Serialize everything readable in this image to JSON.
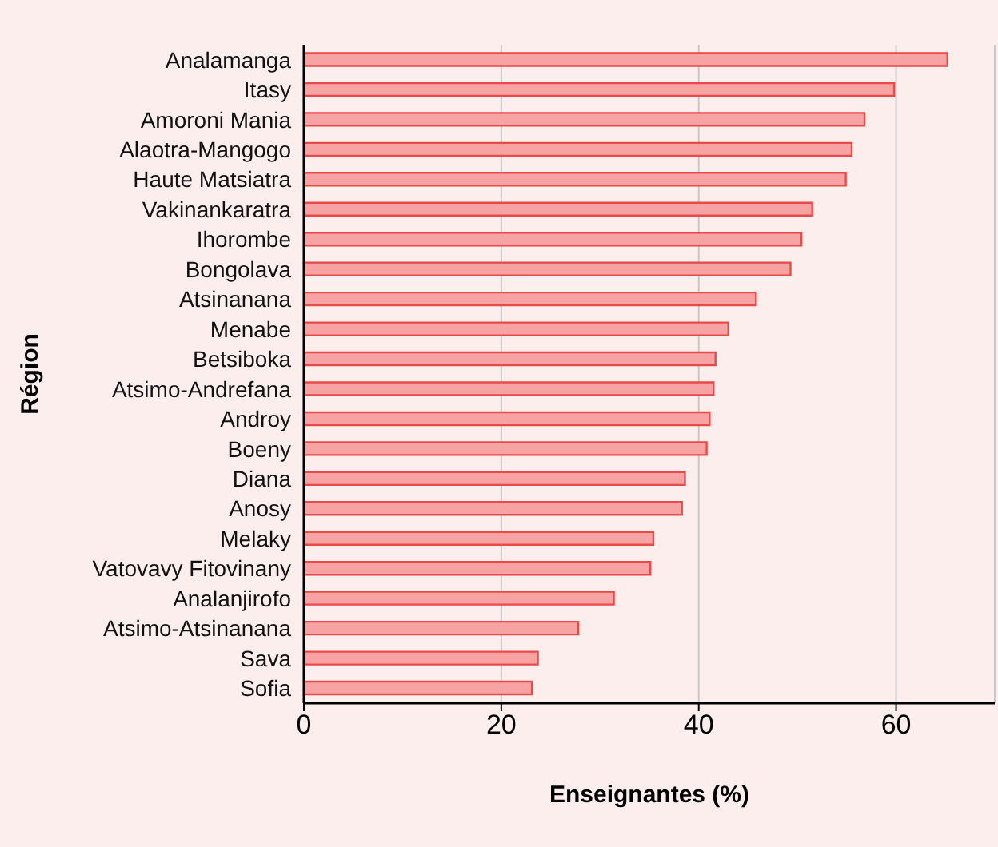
{
  "chart_data": {
    "type": "bar",
    "orientation": "horizontal",
    "xlabel": "Enseignantes (%)",
    "ylabel": "Région",
    "categories": [
      "Analamanga",
      "Itasy",
      "Amoroni Mania",
      "Alaotra-Mangogo",
      "Haute Matsiatra",
      "Vakinankaratra",
      "Ihorombe",
      "Bongolava",
      "Atsinanana",
      "Menabe",
      "Betsiboka",
      "Atsimo-Andrefana",
      "Androy",
      "Boeny",
      "Diana",
      "Anosy",
      "Melaky",
      "Vatovavy Fitovinany",
      "Analanjirofo",
      "Atsimo-Atsinanana",
      "Sava",
      "Sofia"
    ],
    "values": [
      65.2,
      59.8,
      56.8,
      55.5,
      54.9,
      51.5,
      50.4,
      49.3,
      45.8,
      43.0,
      41.7,
      41.5,
      41.1,
      40.8,
      38.6,
      38.3,
      35.4,
      35.1,
      31.4,
      27.8,
      23.7,
      23.1
    ],
    "color": "#f7a3a3",
    "xlim": [
      0,
      70
    ],
    "xticks": [
      0,
      20,
      40,
      60
    ],
    "grid": "x",
    "legend": false
  }
}
